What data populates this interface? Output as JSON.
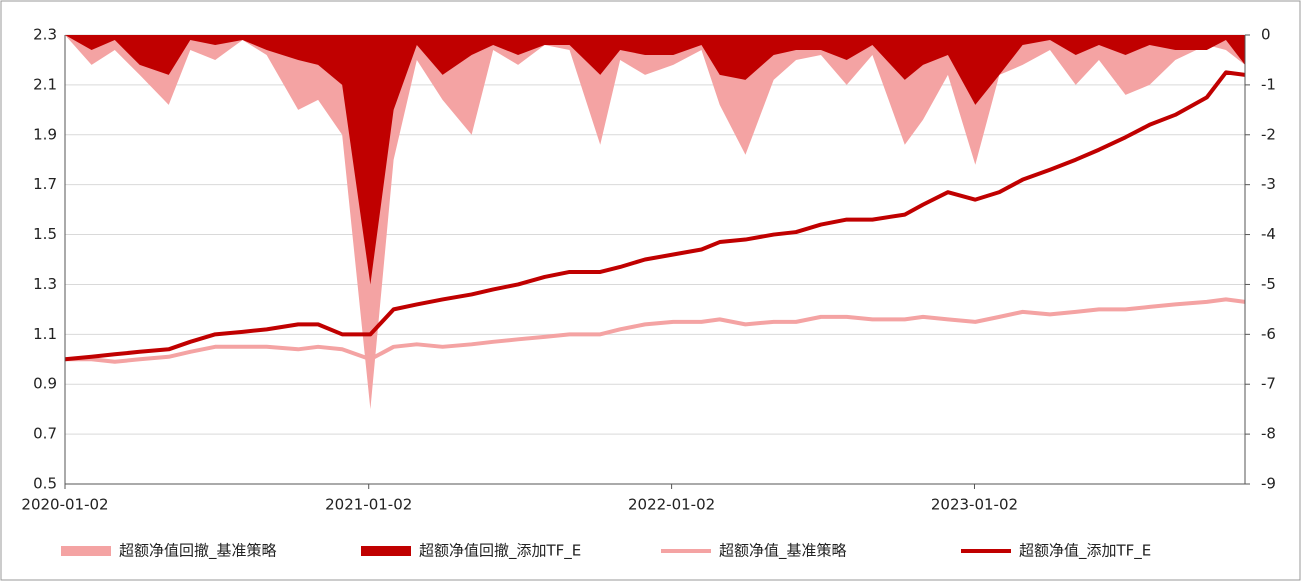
{
  "chart_data": {
    "type": "line",
    "x": [
      "2020-01-02",
      "2020-02-03",
      "2020-03-02",
      "2020-04-01",
      "2020-05-06",
      "2020-06-01",
      "2020-07-01",
      "2020-08-03",
      "2020-09-01",
      "2020-10-09",
      "2020-11-02",
      "2020-12-01",
      "2021-01-04",
      "2021-02-01",
      "2021-03-01",
      "2021-04-01",
      "2021-05-06",
      "2021-06-01",
      "2021-07-01",
      "2021-08-02",
      "2021-09-01",
      "2021-10-08",
      "2021-11-01",
      "2021-12-01",
      "2022-01-04",
      "2022-02-07",
      "2022-03-01",
      "2022-04-01",
      "2022-05-05",
      "2022-06-01",
      "2022-07-01",
      "2022-08-01",
      "2022-09-01",
      "2022-10-10",
      "2022-11-01",
      "2022-12-01",
      "2023-01-03",
      "2023-02-01",
      "2023-03-01",
      "2023-04-03",
      "2023-05-04",
      "2023-06-01",
      "2023-07-03",
      "2023-08-01",
      "2023-09-01",
      "2023-10-09",
      "2023-11-01",
      "2023-11-24"
    ],
    "xlim": [
      "2020-01-02",
      "2023-11-24"
    ],
    "xticks": [
      "2020-01-02",
      "2021-01-02",
      "2022-01-02",
      "2023-01-02"
    ],
    "ylim": [
      0.5,
      2.3
    ],
    "yticks": [
      0.5,
      0.7,
      0.9,
      1.1,
      1.3,
      1.5,
      1.7,
      1.9,
      2.1,
      2.3
    ],
    "y2lim": [
      -9,
      0
    ],
    "y2ticks": [
      0,
      -1,
      -2,
      -3,
      -4,
      -5,
      -6,
      -7,
      -8,
      -9
    ],
    "grid": true,
    "legend": "bottom",
    "series": [
      {
        "name": "超额净值回撤_基准策略",
        "color": "#f4a3a3",
        "type": "area",
        "axis": "y2",
        "values": [
          0,
          -0.6,
          -0.3,
          -0.8,
          -1.4,
          -0.3,
          -0.5,
          -0.1,
          -0.4,
          -1.5,
          -1.3,
          -2.0,
          -7.5,
          -2.5,
          -0.5,
          -1.3,
          -2.0,
          -0.3,
          -0.6,
          -0.2,
          -0.3,
          -2.2,
          -0.5,
          -0.8,
          -0.6,
          -0.3,
          -1.4,
          -2.4,
          -0.9,
          -0.5,
          -0.4,
          -1.0,
          -0.4,
          -2.2,
          -1.7,
          -0.8,
          -2.6,
          -0.8,
          -0.6,
          -0.3,
          -1.0,
          -0.5,
          -1.2,
          -1.0,
          -0.5,
          -0.2,
          -0.3,
          -0.6
        ]
      },
      {
        "name": "超额净值回撤_添加TF_E",
        "color": "#c00000",
        "type": "area",
        "axis": "y2",
        "values": [
          0,
          -0.3,
          -0.1,
          -0.6,
          -0.8,
          -0.1,
          -0.2,
          -0.1,
          -0.3,
          -0.5,
          -0.6,
          -1.0,
          -5.0,
          -1.5,
          -0.2,
          -0.8,
          -0.4,
          -0.2,
          -0.4,
          -0.2,
          -0.2,
          -0.8,
          -0.3,
          -0.4,
          -0.4,
          -0.2,
          -0.8,
          -0.9,
          -0.4,
          -0.3,
          -0.3,
          -0.5,
          -0.2,
          -0.9,
          -0.6,
          -0.4,
          -1.4,
          -0.8,
          -0.2,
          -0.1,
          -0.4,
          -0.2,
          -0.4,
          -0.2,
          -0.3,
          -0.3,
          -0.1,
          -0.6
        ]
      },
      {
        "name": "超额净值_基准策略",
        "color": "#f4a3a3",
        "type": "line",
        "values": [
          1.0,
          1.0,
          0.99,
          1.0,
          1.01,
          1.03,
          1.05,
          1.05,
          1.05,
          1.04,
          1.05,
          1.04,
          1.0,
          1.05,
          1.06,
          1.05,
          1.06,
          1.07,
          1.08,
          1.09,
          1.1,
          1.1,
          1.12,
          1.14,
          1.15,
          1.15,
          1.16,
          1.14,
          1.15,
          1.15,
          1.17,
          1.17,
          1.16,
          1.16,
          1.17,
          1.16,
          1.15,
          1.17,
          1.19,
          1.18,
          1.19,
          1.2,
          1.2,
          1.21,
          1.22,
          1.23,
          1.24,
          1.23
        ]
      },
      {
        "name": "超额净值_添加TF_E",
        "color": "#c00000",
        "type": "line",
        "values": [
          1.0,
          1.01,
          1.02,
          1.03,
          1.04,
          1.07,
          1.1,
          1.11,
          1.12,
          1.14,
          1.14,
          1.1,
          1.1,
          1.2,
          1.22,
          1.24,
          1.26,
          1.28,
          1.3,
          1.33,
          1.35,
          1.35,
          1.37,
          1.4,
          1.42,
          1.44,
          1.47,
          1.48,
          1.5,
          1.51,
          1.54,
          1.56,
          1.56,
          1.58,
          1.62,
          1.67,
          1.64,
          1.67,
          1.72,
          1.76,
          1.8,
          1.84,
          1.89,
          1.94,
          1.98,
          2.05,
          2.15,
          2.14
        ]
      }
    ]
  }
}
